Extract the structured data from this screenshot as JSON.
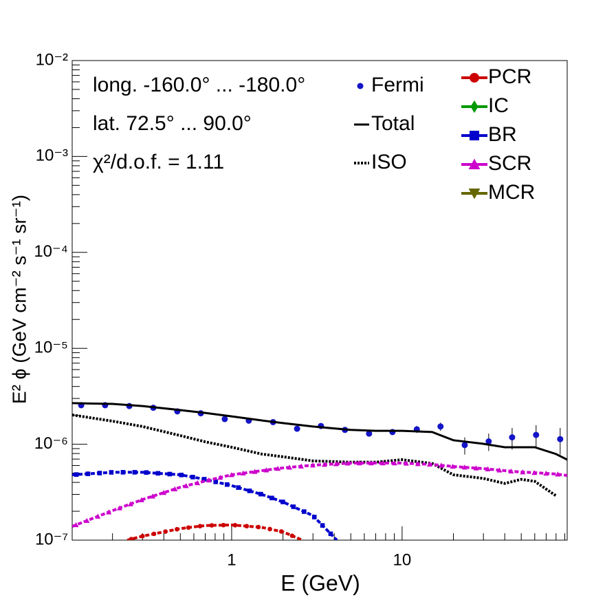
{
  "chart_data": {
    "type": "line",
    "xscale": "log",
    "yscale": "log",
    "xlabel": "E (GeV)",
    "ylabel": "E² ϕ (GeV cm⁻² s⁻¹ sr⁻¹)",
    "xlim": [
      0.116,
      93
    ],
    "ylim": [
      1e-07,
      0.01
    ],
    "xticks": [
      1,
      10
    ],
    "yticks": [
      {
        "value": 1e-07,
        "label": "10⁻⁷"
      },
      {
        "value": 1e-06,
        "label": "10⁻⁶"
      },
      {
        "value": 1e-05,
        "label": "10⁻⁵"
      },
      {
        "value": 0.0001,
        "label": "10⁻⁴"
      },
      {
        "value": 0.001,
        "label": "10⁻³"
      },
      {
        "value": 0.01,
        "label": "10⁻²"
      }
    ],
    "annotations": [
      "long. -160.0° ... -180.0°",
      "lat. 72.5° ... 90.0°",
      "χ²/d.o.f. = 1.11"
    ],
    "series": [
      {
        "name": "Fermi",
        "color": "#1414c8",
        "style": "points",
        "marker": "circle",
        "x": [
          0.131,
          0.181,
          0.251,
          0.347,
          0.48,
          0.659,
          0.911,
          1.26,
          1.75,
          2.42,
          3.34,
          4.62,
          6.4,
          8.78,
          12.2,
          16.8,
          23.3,
          32.2,
          44.2,
          61.1,
          84.6
        ],
        "values": [
          2.55e-06,
          2.55e-06,
          2.5e-06,
          2.4e-06,
          2.2e-06,
          2.1e-06,
          1.83e-06,
          1.76e-06,
          1.7e-06,
          1.45e-06,
          1.55e-06,
          1.41e-06,
          1.29e-06,
          1.34e-06,
          1.43e-06,
          1.53e-06,
          9.8e-07,
          1.07e-06,
          1.18e-06,
          1.25e-06,
          1.13e-06
        ],
        "errors": [
          5e-08,
          5e-08,
          5e-08,
          5e-08,
          5e-08,
          5e-08,
          4e-08,
          4e-08,
          4e-08,
          4e-08,
          5e-08,
          5e-08,
          6e-08,
          8e-08,
          1.2e-07,
          1.5e-07,
          2e-07,
          2.2e-07,
          3e-07,
          3.3e-07,
          3.5e-07
        ]
      },
      {
        "name": "Total",
        "color": "#000000",
        "style": "solid",
        "x": [
          0.116,
          0.2,
          0.3,
          0.5,
          0.7,
          1,
          1.5,
          2,
          3,
          5,
          7,
          10,
          15,
          20,
          30,
          40,
          50,
          60,
          80,
          93
        ],
        "values": [
          2.68e-06,
          2.63e-06,
          2.5e-06,
          2.27e-06,
          2.12e-06,
          1.95e-06,
          1.77e-06,
          1.66e-06,
          1.53e-06,
          1.41e-06,
          1.38e-06,
          1.38e-06,
          1.34e-06,
          1.1e-06,
          1.01e-06,
          9.3e-07,
          9.3e-07,
          9.3e-07,
          7.9e-07,
          6.9e-07
        ]
      },
      {
        "name": "ISO",
        "color": "#000000",
        "style": "dotted",
        "x": [
          0.116,
          0.2,
          0.3,
          0.5,
          0.7,
          1,
          1.5,
          2,
          3,
          5,
          7,
          10,
          15,
          20,
          30,
          40,
          50,
          60,
          80
        ],
        "values": [
          2.02e-06,
          1.74e-06,
          1.53e-06,
          1.23e-06,
          1.06e-06,
          9.3e-07,
          7.9e-07,
          7.4e-07,
          6.7e-07,
          6.5e-07,
          6.5e-07,
          6.9e-07,
          6.3e-07,
          4.8e-07,
          4.4e-07,
          3.9e-07,
          4.3e-07,
          4.1e-07,
          2.9e-07
        ]
      },
      {
        "name": "PCR",
        "color": "#cc0000",
        "style": "dashed",
        "marker": "circle",
        "x": [
          0.244,
          0.3,
          0.5,
          0.7,
          1,
          1.5,
          2,
          2.6
        ],
        "values": [
          1e-07,
          1.1e-07,
          1.32e-07,
          1.42e-07,
          1.44e-07,
          1.36e-07,
          1.22e-07,
          1e-07
        ]
      },
      {
        "name": "IC",
        "color": "#009900",
        "marker": "diamond"
      },
      {
        "name": "BR",
        "color": "#0000cc",
        "style": "dashed",
        "marker": "square",
        "x": [
          0.116,
          0.2,
          0.3,
          0.5,
          0.7,
          1,
          1.5,
          2,
          3,
          4.14
        ],
        "values": [
          4.8e-07,
          5.1e-07,
          5.1e-07,
          4.8e-07,
          4.3e-07,
          3.7e-07,
          3e-07,
          2.5e-07,
          1.8e-07,
          1e-07
        ]
      },
      {
        "name": "SCR",
        "color": "#cc00cc",
        "style": "dashed",
        "marker": "triangle",
        "x": [
          0.116,
          0.2,
          0.3,
          0.5,
          0.7,
          1,
          1.5,
          2,
          3,
          5,
          7,
          10,
          15,
          20,
          30,
          40,
          50,
          60,
          80,
          93
        ],
        "values": [
          1.39e-07,
          2.03e-07,
          2.65e-07,
          3.56e-07,
          4.14e-07,
          4.8e-07,
          5.3e-07,
          5.66e-07,
          6.05e-07,
          6.36e-07,
          6.36e-07,
          6.36e-07,
          6.15e-07,
          5.86e-07,
          5.57e-07,
          5.3e-07,
          5.13e-07,
          5.05e-07,
          4.89e-07,
          4.72e-07
        ]
      },
      {
        "name": "MCR",
        "color": "#666600",
        "marker": "triangle-down"
      }
    ]
  }
}
